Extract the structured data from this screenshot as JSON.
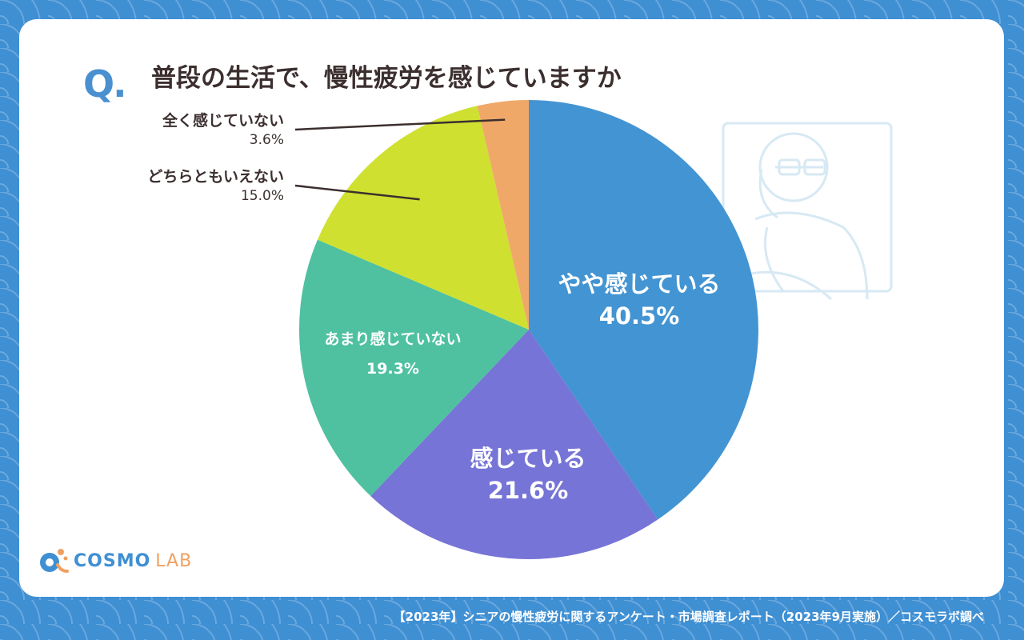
{
  "header": {
    "q_mark": "Q",
    "title": "普段の生活で、慢性疲労を感じていますか"
  },
  "footer": {
    "source": "【2023年】シニアの慢性疲労に関するアンケート・市場調査レポート（2023年9月実施）／コスモラボ調べ"
  },
  "logo": {
    "cosmo": "COSMO",
    "lab": "LAB"
  },
  "colors": {
    "background": "#3f8fd3",
    "accent": "#4a90d0",
    "text": "#3c2f2f"
  },
  "chart_data": {
    "type": "pie",
    "title": "普段の生活で、慢性疲労を感じていますか",
    "slices": [
      {
        "label": "やや感じている",
        "value": 40.5,
        "pct_label": "40.5%",
        "color": "#4394d2"
      },
      {
        "label": "感じている",
        "value": 21.6,
        "pct_label": "21.6%",
        "color": "#7674d6"
      },
      {
        "label": "あまり感じていない",
        "value": 19.3,
        "pct_label": "19.3%",
        "color": "#4fc1a0"
      },
      {
        "label": "どちらともいえない",
        "value": 15.0,
        "pct_label": "15.0%",
        "color": "#cfe030"
      },
      {
        "label": "全く感じていない",
        "value": 3.6,
        "pct_label": "3.6%",
        "color": "#f0a868"
      }
    ],
    "start": "12 o'clock",
    "direction": "clockwise"
  }
}
